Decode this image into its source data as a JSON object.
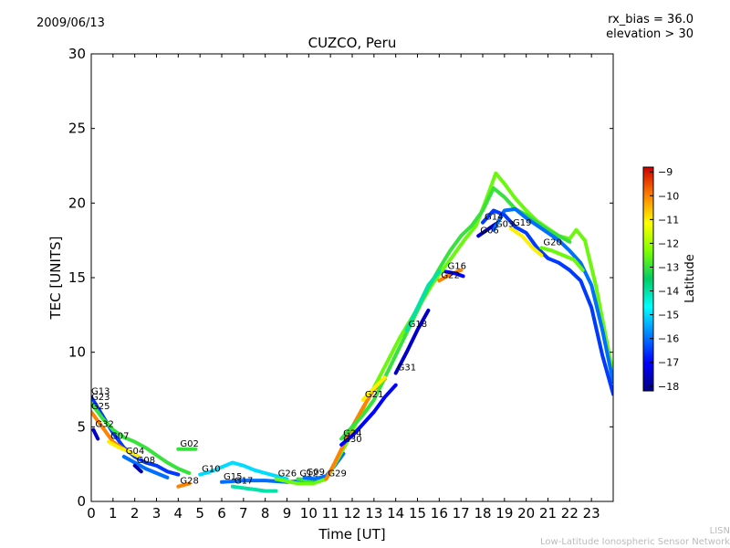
{
  "header": {
    "date": "2009/06/13",
    "rx_bias": "rx_bias = 36.0",
    "elevation": "elevation > 30"
  },
  "footer": {
    "line1": "LISN",
    "line2": "Low-Latitude Ionospheric Sensor Network"
  },
  "chart_data": {
    "type": "scatter",
    "title": "CUZCO, Peru",
    "xlabel": "Time [UT]",
    "ylabel": "TEC [UNITS]",
    "xlim": [
      0,
      24
    ],
    "ylim": [
      0,
      30
    ],
    "xticks": [
      "0",
      "1",
      "2",
      "3",
      "4",
      "5",
      "6",
      "7",
      "8",
      "9",
      "10",
      "11",
      "12",
      "13",
      "14",
      "15",
      "16",
      "17",
      "18",
      "19",
      "20",
      "21",
      "22",
      "23"
    ],
    "yticks": [
      "0",
      "5",
      "10",
      "15",
      "20",
      "25",
      "30"
    ],
    "grid": false,
    "colorbar": {
      "label": "Latitude",
      "range": [
        -18.2,
        -8.8
      ],
      "ticks": [
        "−9",
        "−10",
        "−11",
        "−12",
        "−13",
        "−14",
        "−15",
        "−16",
        "−17",
        "−18"
      ],
      "tick_values": [
        -9,
        -10,
        -11,
        -12,
        -13,
        -14,
        -15,
        -16,
        -17,
        -18
      ]
    },
    "series": [
      {
        "name": "G13",
        "lat": -16.5,
        "points": [
          [
            0,
            7.0
          ],
          [
            0.5,
            5.8
          ],
          [
            1,
            4.6
          ],
          [
            1.5,
            3.6
          ],
          [
            2,
            3.0
          ],
          [
            2.5,
            2.6
          ],
          [
            3,
            2.4
          ],
          [
            3.5,
            2.0
          ],
          [
            4,
            1.8
          ]
        ]
      },
      {
        "name": "G23",
        "lat": -13,
        "points": [
          [
            0,
            6.6
          ],
          [
            0.5,
            5.6
          ],
          [
            1,
            4.8
          ],
          [
            1.5,
            4.3
          ],
          [
            2,
            4.0
          ],
          [
            2.5,
            3.6
          ],
          [
            3,
            3.1
          ],
          [
            3.5,
            2.6
          ],
          [
            4,
            2.2
          ],
          [
            4.5,
            1.9
          ]
        ]
      },
      {
        "name": "G25",
        "lat": -10,
        "points": [
          [
            0,
            6.0
          ],
          [
            0.5,
            5.0
          ],
          [
            1,
            4.0
          ],
          [
            1.5,
            3.5
          ]
        ]
      },
      {
        "name": "G32",
        "lat": -17.5,
        "points": [
          [
            0.1,
            4.8
          ],
          [
            0.3,
            4.2
          ]
        ]
      },
      {
        "name": "G07",
        "lat": -11,
        "points": [
          [
            0.8,
            4.0
          ],
          [
            1.3,
            3.6
          ],
          [
            1.8,
            3.3
          ],
          [
            2.2,
            3.0
          ]
        ]
      },
      {
        "name": "G04",
        "lat": -16,
        "points": [
          [
            1.5,
            3.0
          ],
          [
            2,
            2.6
          ],
          [
            2.5,
            2.2
          ],
          [
            3,
            1.9
          ],
          [
            3.5,
            1.6
          ]
        ]
      },
      {
        "name": "G08",
        "lat": -17.8,
        "points": [
          [
            2,
            2.4
          ],
          [
            2.3,
            2.0
          ]
        ]
      },
      {
        "name": "G02",
        "lat": -13,
        "points": [
          [
            4,
            3.5
          ],
          [
            4.8,
            3.5
          ]
        ]
      },
      {
        "name": "G28",
        "lat": -10,
        "points": [
          [
            4,
            1.0
          ],
          [
            4.5,
            1.2
          ]
        ]
      },
      {
        "name": "G10",
        "lat": -15,
        "points": [
          [
            5,
            1.8
          ],
          [
            5.5,
            2.0
          ],
          [
            6,
            2.3
          ],
          [
            6.5,
            2.6
          ],
          [
            7,
            2.4
          ],
          [
            7.5,
            2.1
          ],
          [
            8,
            1.9
          ],
          [
            8.5,
            1.7
          ],
          [
            9,
            1.5
          ]
        ]
      },
      {
        "name": "G17",
        "lat": -14,
        "points": [
          [
            6.5,
            1.0
          ],
          [
            7,
            0.9
          ],
          [
            7.5,
            0.8
          ],
          [
            8,
            0.7
          ],
          [
            8.5,
            0.7
          ]
        ]
      },
      {
        "name": "G15",
        "lat": -16,
        "points": [
          [
            6,
            1.3
          ],
          [
            7,
            1.4
          ],
          [
            8,
            1.4
          ],
          [
            9,
            1.3
          ],
          [
            10,
            1.4
          ],
          [
            10.8,
            1.7
          ],
          [
            11.2,
            2.4
          ],
          [
            11.6,
            3.2
          ]
        ]
      },
      {
        "name": "G26",
        "lat": -12.5,
        "points": [
          [
            8.5,
            1.5
          ],
          [
            9.5,
            1.2
          ],
          [
            10.2,
            1.2
          ],
          [
            10.8,
            1.5
          ],
          [
            11.2,
            2.5
          ],
          [
            11.7,
            3.8
          ],
          [
            12.2,
            5.3
          ],
          [
            12.7,
            6.8
          ],
          [
            13.2,
            8.2
          ],
          [
            13.7,
            9.6
          ],
          [
            14.2,
            11.0
          ],
          [
            14.7,
            12.2
          ],
          [
            15.2,
            13.4
          ],
          [
            15.7,
            14.6
          ],
          [
            16.2,
            15.6
          ],
          [
            16.7,
            16.6
          ],
          [
            17.2,
            17.6
          ],
          [
            17.7,
            18.5
          ],
          [
            18.2,
            20.4
          ],
          [
            18.6,
            22.0
          ],
          [
            19,
            21.3
          ],
          [
            19.5,
            20.3
          ],
          [
            20,
            19.5
          ],
          [
            20.5,
            18.8
          ],
          [
            21,
            18.3
          ],
          [
            21.5,
            17.8
          ],
          [
            22,
            17.6
          ],
          [
            22.3,
            18.2
          ],
          [
            22.7,
            17.5
          ],
          [
            23.2,
            14.5
          ],
          [
            23.6,
            11.5
          ],
          [
            24,
            8.5
          ]
        ]
      },
      {
        "name": "G29",
        "lat": -10,
        "points": [
          [
            10.8,
            1.5
          ],
          [
            11.2,
            2.6
          ],
          [
            11.6,
            3.8
          ],
          [
            12,
            5.0
          ],
          [
            12.5,
            6.3
          ],
          [
            13,
            7.5
          ],
          [
            13.5,
            8.2
          ]
        ]
      },
      {
        "name": "G30",
        "lat": -17,
        "points": [
          [
            11.5,
            3.8
          ],
          [
            12,
            4.4
          ],
          [
            12.5,
            5.2
          ],
          [
            13,
            6.0
          ],
          [
            13.5,
            7.0
          ],
          [
            14,
            7.8
          ]
        ]
      },
      {
        "name": "G24",
        "lat": -13,
        "points": [
          [
            11.5,
            4.2
          ],
          [
            12,
            5.0
          ],
          [
            12.5,
            5.8
          ],
          [
            13,
            6.8
          ],
          [
            13.5,
            8.3
          ],
          [
            14,
            9.8
          ],
          [
            14.5,
            11.3
          ],
          [
            15,
            12.8
          ],
          [
            15.5,
            14.3
          ],
          [
            16,
            15.6
          ],
          [
            16.5,
            16.8
          ],
          [
            17,
            17.8
          ],
          [
            17.5,
            18.5
          ],
          [
            18,
            19.5
          ],
          [
            18.5,
            21.0
          ],
          [
            19,
            20.4
          ],
          [
            19.5,
            19.6
          ],
          [
            20,
            19.2
          ],
          [
            20.5,
            18.7
          ],
          [
            21,
            18.2
          ],
          [
            21.5,
            17.8
          ],
          [
            22,
            17.4
          ]
        ]
      },
      {
        "name": "G21",
        "lat": -11,
        "points": [
          [
            12.5,
            6.8
          ],
          [
            13,
            7.6
          ],
          [
            13.5,
            8.3
          ]
        ]
      },
      {
        "name": "G31",
        "lat": -17.5,
        "points": [
          [
            14,
            8.6
          ],
          [
            14.5,
            10.0
          ],
          [
            15,
            11.5
          ],
          [
            15.5,
            12.8
          ]
        ]
      },
      {
        "name": "G18",
        "lat": -14,
        "points": [
          [
            14.5,
            11.5
          ],
          [
            15,
            13.0
          ],
          [
            15.5,
            14.5
          ],
          [
            16,
            15.4
          ]
        ]
      },
      {
        "name": "G22",
        "lat": -10,
        "points": [
          [
            16,
            14.8
          ],
          [
            16.5,
            15.2
          ],
          [
            17,
            15.5
          ]
        ]
      },
      {
        "name": "G16",
        "lat": -17,
        "points": [
          [
            16.3,
            15.4
          ],
          [
            16.7,
            15.3
          ],
          [
            17.1,
            15.1
          ]
        ]
      },
      {
        "name": "G06",
        "lat": -17.5,
        "points": [
          [
            17.8,
            17.8
          ],
          [
            18.2,
            18.2
          ],
          [
            18.6,
            18.6
          ]
        ]
      },
      {
        "name": "G03",
        "lat": -16,
        "points": [
          [
            18.5,
            18.2
          ],
          [
            19,
            19.5
          ],
          [
            19.5,
            19.6
          ],
          [
            20,
            19.0
          ],
          [
            20.5,
            18.5
          ],
          [
            21,
            18.0
          ],
          [
            21.5,
            17.5
          ],
          [
            22,
            16.8
          ],
          [
            22.5,
            16.0
          ],
          [
            23,
            14.5
          ],
          [
            23.5,
            11.5
          ],
          [
            24,
            8.0
          ]
        ]
      },
      {
        "name": "G14",
        "lat": -16.5,
        "points": [
          [
            18,
            18.7
          ],
          [
            18.5,
            19.5
          ],
          [
            19,
            19.2
          ],
          [
            19.5,
            18.4
          ],
          [
            20,
            18.0
          ],
          [
            20.5,
            17.0
          ],
          [
            21,
            16.3
          ],
          [
            21.5,
            16.0
          ],
          [
            22,
            15.5
          ],
          [
            22.5,
            14.8
          ],
          [
            23,
            13.0
          ],
          [
            23.5,
            9.8
          ],
          [
            24,
            7.2
          ]
        ]
      },
      {
        "name": "G19",
        "lat": -11,
        "points": [
          [
            19.3,
            18.3
          ],
          [
            19.8,
            17.8
          ],
          [
            20.3,
            17.0
          ],
          [
            20.7,
            16.5
          ]
        ]
      },
      {
        "name": "G20",
        "lat": -12.5,
        "points": [
          [
            20.7,
            17.0
          ],
          [
            21.2,
            16.8
          ],
          [
            21.7,
            16.5
          ],
          [
            22.2,
            16.2
          ],
          [
            22.6,
            15.5
          ]
        ]
      },
      {
        "name": "G12",
        "lat": -13,
        "points": [
          [
            9.5,
            1.5
          ],
          [
            10.2,
            1.4
          ]
        ]
      },
      {
        "name": "G09",
        "lat": -16,
        "points": [
          [
            9.8,
            1.6
          ],
          [
            10.3,
            1.5
          ]
        ]
      }
    ]
  }
}
